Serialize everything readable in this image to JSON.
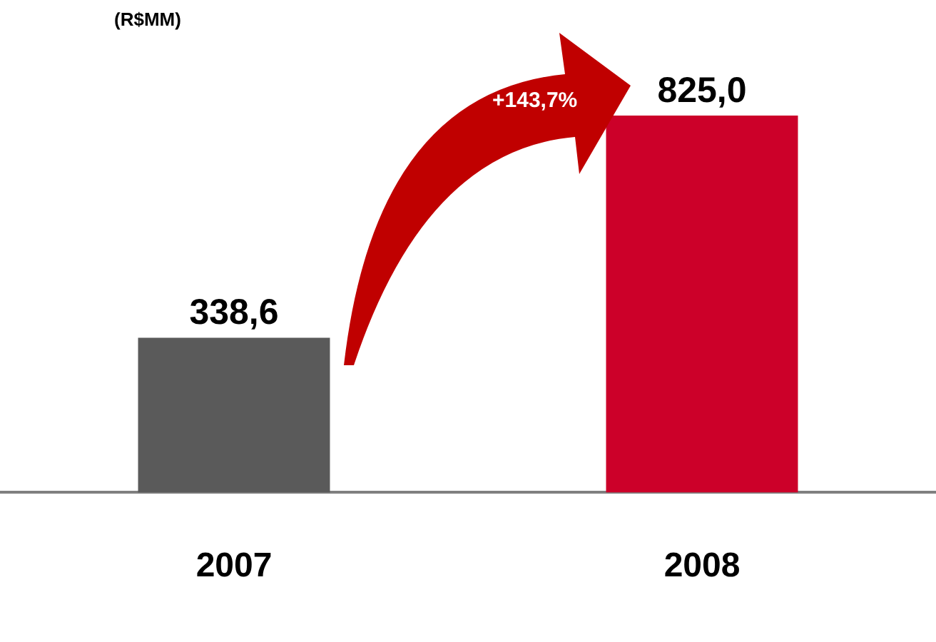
{
  "chart_data": {
    "type": "bar",
    "ylabel": "(R$MM)",
    "categories": [
      "2007",
      "2008"
    ],
    "values": [
      338.6,
      825.0
    ],
    "colors": [
      "#5a5a5a",
      "#cc0029"
    ],
    "value_labels": [
      "338,6",
      "825,0"
    ],
    "annotations": [
      "+143,7%"
    ],
    "grid": false,
    "legend": false
  }
}
